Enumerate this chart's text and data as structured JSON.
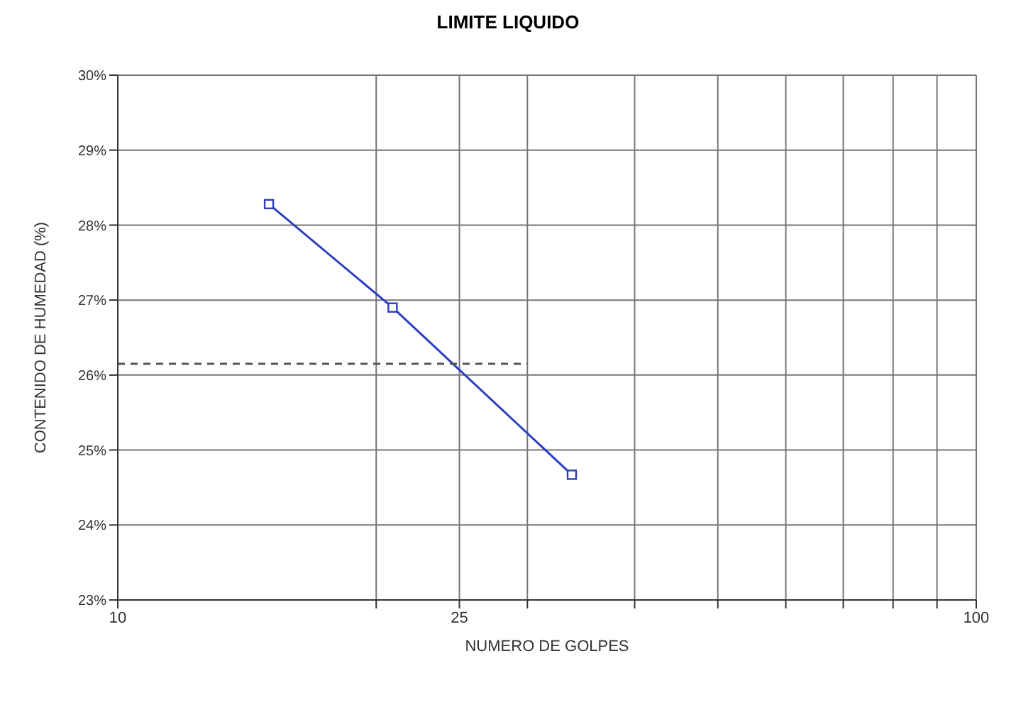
{
  "chart_data": {
    "type": "line",
    "title": "LIMITE LIQUIDO",
    "xlabel": "NUMERO DE GOLPES",
    "ylabel": "CONTENIDO DE HUMEDAD (%)",
    "log": "x",
    "grid": true,
    "marker": "square",
    "xlim": [
      10,
      100
    ],
    "xticks": [
      10,
      {
        "value": 20,
        "label": null
      },
      {
        "value": 25,
        "label": "25"
      },
      {
        "value": 30,
        "label": null
      },
      {
        "value": 40,
        "label": null
      },
      {
        "value": 50,
        "label": null
      },
      {
        "value": 60,
        "label": null
      },
      {
        "value": 70,
        "label": null
      },
      {
        "value": 80,
        "label": null
      },
      {
        "value": 90,
        "label": null
      },
      100
    ],
    "ylim": [
      23,
      30
    ],
    "yticks": [
      {
        "value": 23,
        "label": "23%"
      },
      {
        "value": 24,
        "label": "24%"
      },
      {
        "value": 25,
        "label": "25%"
      },
      {
        "value": 26,
        "label": "26%"
      },
      {
        "value": 27,
        "label": "27%"
      },
      {
        "value": 28,
        "label": "28%"
      },
      {
        "value": 29,
        "label": "29%"
      },
      {
        "value": 30,
        "label": "30%"
      }
    ],
    "series": [
      {
        "color": "#2b3fbf",
        "x": [
          15,
          20.9,
          33.8
        ],
        "values": [
          28.28,
          26.9,
          24.67
        ],
        "line_style": "solid"
      },
      {
        "color": "#555555",
        "x": [
          10,
          30
        ],
        "values": [
          26.15,
          26.15
        ],
        "line_style": "dashed",
        "marker": "none"
      }
    ]
  }
}
